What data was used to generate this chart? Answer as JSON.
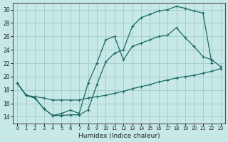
{
  "bg_color": "#c6e8e6",
  "grid_color": "#a8cece",
  "line_color": "#1a6b62",
  "xlabel": "Humidex (Indice chaleur)",
  "xlim": [
    -0.5,
    23.5
  ],
  "ylim": [
    13.0,
    31.0
  ],
  "yticks": [
    14,
    16,
    18,
    20,
    22,
    24,
    26,
    28,
    30
  ],
  "xticks": [
    0,
    1,
    2,
    3,
    4,
    5,
    6,
    7,
    8,
    9,
    10,
    11,
    12,
    13,
    14,
    15,
    16,
    17,
    18,
    19,
    20,
    21,
    22,
    23
  ],
  "line1_x": [
    0,
    1,
    2,
    3,
    4,
    5,
    6,
    7,
    8,
    9,
    10,
    11,
    12,
    13,
    14,
    15,
    16,
    17,
    18,
    19,
    20,
    21,
    22,
    23
  ],
  "line1_y": [
    19.0,
    17.2,
    17.0,
    16.8,
    16.5,
    16.5,
    16.5,
    16.5,
    16.8,
    17.0,
    17.2,
    17.5,
    17.8,
    18.2,
    18.5,
    18.8,
    19.2,
    19.5,
    19.8,
    20.0,
    20.2,
    20.5,
    20.8,
    21.2
  ],
  "line2_x": [
    0,
    1,
    2,
    3,
    4,
    5,
    6,
    7,
    8,
    9,
    10,
    11,
    12,
    13,
    14,
    15,
    16,
    17,
    18,
    19,
    20,
    21,
    22
  ],
  "line2_y": [
    19.0,
    17.2,
    16.8,
    15.2,
    14.2,
    14.2,
    14.3,
    14.3,
    15.0,
    18.8,
    22.2,
    23.5,
    24.0,
    27.5,
    28.8,
    29.3,
    29.8,
    30.0,
    30.5,
    30.2,
    29.8,
    29.5,
    22.0
  ],
  "line3_x": [
    0,
    1,
    2,
    3,
    4,
    5,
    6,
    7,
    8,
    9,
    10,
    11,
    12,
    13,
    14,
    15,
    16,
    17,
    18,
    19,
    20,
    21,
    22,
    23
  ],
  "line3_y": [
    19.0,
    17.2,
    16.8,
    15.2,
    14.2,
    14.5,
    15.0,
    14.5,
    19.0,
    22.0,
    25.5,
    26.0,
    22.5,
    24.5,
    25.0,
    25.5,
    26.0,
    26.2,
    27.3,
    25.8,
    24.5,
    23.0,
    22.5,
    21.5
  ]
}
